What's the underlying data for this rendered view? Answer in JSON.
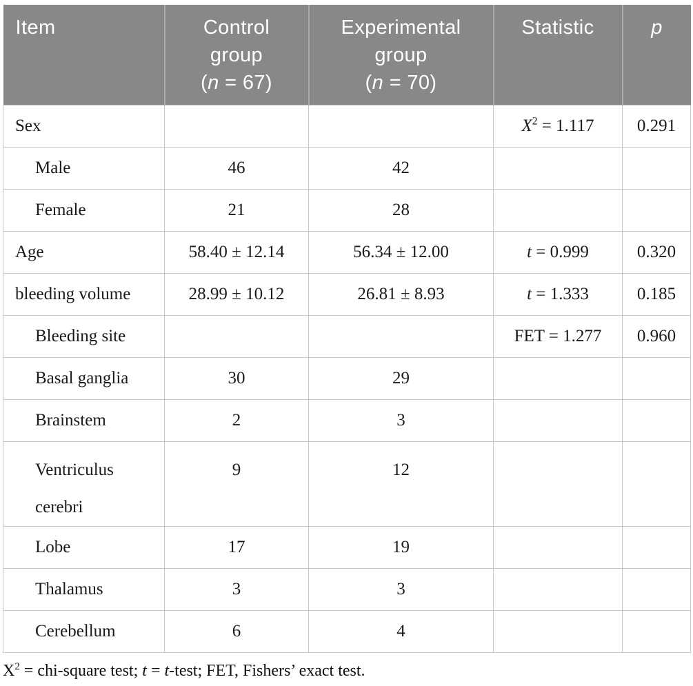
{
  "colors": {
    "header_bg": "#87888A",
    "header_text": "#FFFFFF",
    "header_divider": "#A9ABAD",
    "body_border": "#C7C7C7",
    "body_text": "#1A1A1A"
  },
  "table": {
    "columns": [
      {
        "id": "item",
        "lines": [
          [
            {
              "t": "Item"
            }
          ]
        ]
      },
      {
        "id": "control",
        "lines": [
          [
            {
              "t": "Control"
            }
          ],
          [
            {
              "t": "group"
            }
          ],
          [
            {
              "t": "("
            },
            {
              "t": "n",
              "i": true
            },
            {
              "t": " = 67)"
            }
          ]
        ]
      },
      {
        "id": "experimental",
        "lines": [
          [
            {
              "t": "Experimental"
            }
          ],
          [
            {
              "t": "group"
            }
          ],
          [
            {
              "t": "("
            },
            {
              "t": "n",
              "i": true
            },
            {
              "t": " = 70)"
            }
          ]
        ]
      },
      {
        "id": "statistic",
        "lines": [
          [
            {
              "t": "Statistic"
            }
          ]
        ]
      },
      {
        "id": "p",
        "lines": [
          [
            {
              "t": "p",
              "i": true
            }
          ]
        ]
      }
    ],
    "rows": [
      {
        "item": "Sex",
        "indent": false,
        "tall": false,
        "control": "",
        "experimental": "",
        "stat": [
          {
            "t": "X",
            "i": true
          },
          {
            "t": "2",
            "sup": true
          },
          {
            "t": " = 1.117"
          }
        ],
        "p": "0.291"
      },
      {
        "item": "Male",
        "indent": true,
        "tall": false,
        "control": "46",
        "experimental": "42",
        "stat": null,
        "p": ""
      },
      {
        "item": "Female",
        "indent": true,
        "tall": false,
        "control": "21",
        "experimental": "28",
        "stat": null,
        "p": ""
      },
      {
        "item": "Age",
        "indent": false,
        "tall": false,
        "control": "58.40 ± 12.14",
        "experimental": "56.34 ± 12.00",
        "stat": [
          {
            "t": "t",
            "i": true
          },
          {
            "t": " = 0.999"
          }
        ],
        "p": "0.320"
      },
      {
        "item": "bleeding volume",
        "indent": false,
        "tall": false,
        "control": "28.99 ± 10.12",
        "experimental": "26.81 ± 8.93",
        "stat": [
          {
            "t": "t",
            "i": true
          },
          {
            "t": " = 1.333"
          }
        ],
        "p": "0.185"
      },
      {
        "item": "Bleeding site",
        "indent": true,
        "tall": false,
        "control": "",
        "experimental": "",
        "stat": [
          {
            "t": "FET = 1.277"
          }
        ],
        "p": "0.960"
      },
      {
        "item": "Basal ganglia",
        "indent": true,
        "tall": false,
        "control": "30",
        "experimental": "29",
        "stat": null,
        "p": ""
      },
      {
        "item": "Brainstem",
        "indent": true,
        "tall": false,
        "control": "2",
        "experimental": "3",
        "stat": null,
        "p": ""
      },
      {
        "item": "Ventriculus cerebri",
        "indent": true,
        "tall": true,
        "control": "9",
        "experimental": "12",
        "stat": null,
        "p": ""
      },
      {
        "item": "Lobe",
        "indent": true,
        "tall": false,
        "control": "17",
        "experimental": "19",
        "stat": null,
        "p": ""
      },
      {
        "item": "Thalamus",
        "indent": true,
        "tall": false,
        "control": "3",
        "experimental": "3",
        "stat": null,
        "p": ""
      },
      {
        "item": "Cerebellum",
        "indent": true,
        "tall": false,
        "control": "6",
        "experimental": "4",
        "stat": null,
        "p": ""
      }
    ]
  },
  "footnote": {
    "segments": [
      {
        "t": "X"
      },
      {
        "t": "2",
        "sup": true
      },
      {
        "t": " = chi-square test; "
      },
      {
        "t": "t",
        "i": true
      },
      {
        "t": " = "
      },
      {
        "t": "t",
        "i": true
      },
      {
        "t": "-test; FET, Fishers’ exact test."
      }
    ]
  }
}
